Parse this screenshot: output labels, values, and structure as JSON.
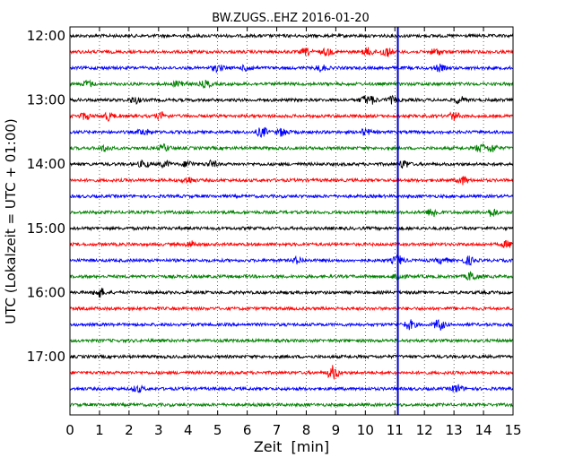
{
  "chart_data": {
    "type": "line",
    "title": "BW.ZUGS..EHZ 2016-01-20",
    "xlabel": "Zeit  [min]",
    "ylabel": "UTC (Lokalzeit = UTC + 01:00)",
    "xlim": [
      0,
      15
    ],
    "x_ticks": [
      "0",
      "1",
      "2",
      "3",
      "4",
      "5",
      "6",
      "7",
      "8",
      "9",
      "10",
      "11",
      "12",
      "13",
      "14",
      "15"
    ],
    "y_tick_labels": [
      {
        "label": "12:00",
        "trace": 0
      },
      {
        "label": "13:00",
        "trace": 4
      },
      {
        "label": "14:00",
        "trace": 8
      },
      {
        "label": "15:00",
        "trace": 12
      },
      {
        "label": "16:00",
        "trace": 16
      },
      {
        "label": "17:00",
        "trace": 20
      }
    ],
    "grid": "vertical dotted at each minute",
    "colors": [
      "#000000",
      "#ff0000",
      "#0000ff",
      "#008000"
    ],
    "marker_line": {
      "x": 11.1,
      "color": "#0000cc"
    },
    "series": [
      {
        "start": "12:00",
        "color": "#000000",
        "events": []
      },
      {
        "start": "12:15",
        "color": "#ff0000",
        "events": [
          [
            8,
            2
          ],
          [
            8.7,
            2
          ],
          [
            10.1,
            2.5
          ],
          [
            10.7,
            3
          ],
          [
            12.4,
            2
          ]
        ]
      },
      {
        "start": "12:30",
        "color": "#0000ff",
        "events": [
          [
            5,
            2
          ],
          [
            6,
            2
          ],
          [
            8.5,
            2
          ],
          [
            12.5,
            2
          ]
        ]
      },
      {
        "start": "12:45",
        "color": "#008000",
        "events": [
          [
            0.6,
            2
          ],
          [
            3.7,
            2.5
          ],
          [
            4.6,
            2
          ]
        ]
      },
      {
        "start": "13:00",
        "color": "#000000",
        "events": [
          [
            2.2,
            2
          ],
          [
            10,
            2.5
          ],
          [
            10.2,
            2.5
          ],
          [
            10.9,
            2
          ],
          [
            13.2,
            2
          ]
        ]
      },
      {
        "start": "13:15",
        "color": "#ff0000",
        "events": [
          [
            0.5,
            2
          ],
          [
            1.3,
            2.5
          ],
          [
            3.1,
            2
          ],
          [
            13,
            2.5
          ]
        ]
      },
      {
        "start": "13:30",
        "color": "#0000ff",
        "events": [
          [
            2.5,
            2
          ],
          [
            6.5,
            3
          ],
          [
            7.2,
            2.5
          ],
          [
            10,
            2
          ]
        ]
      },
      {
        "start": "13:45",
        "color": "#008000",
        "events": [
          [
            1.2,
            2
          ],
          [
            3.2,
            2
          ],
          [
            13.9,
            2.5
          ],
          [
            14.3,
            2.5
          ]
        ]
      },
      {
        "start": "14:00",
        "color": "#000000",
        "events": [
          [
            2.5,
            2
          ],
          [
            3.2,
            2
          ],
          [
            4,
            2
          ],
          [
            4.8,
            2
          ],
          [
            11.3,
            2.5
          ]
        ]
      },
      {
        "start": "14:15",
        "color": "#ff0000",
        "events": [
          [
            4,
            2
          ],
          [
            13.3,
            2.5
          ]
        ]
      },
      {
        "start": "14:30",
        "color": "#0000ff",
        "events": []
      },
      {
        "start": "14:45",
        "color": "#008000",
        "events": [
          [
            12.3,
            3
          ],
          [
            14.3,
            2.5
          ]
        ]
      },
      {
        "start": "15:00",
        "color": "#000000",
        "events": []
      },
      {
        "start": "15:15",
        "color": "#ff0000",
        "events": [
          [
            4.1,
            2
          ],
          [
            14.8,
            2
          ]
        ]
      },
      {
        "start": "15:30",
        "color": "#0000ff",
        "events": [
          [
            7.7,
            2
          ],
          [
            11.1,
            3
          ],
          [
            12.6,
            2
          ],
          [
            13.5,
            2.5
          ]
        ]
      },
      {
        "start": "15:45",
        "color": "#008000",
        "events": [
          [
            11.1,
            2.5
          ],
          [
            13.6,
            3
          ]
        ]
      },
      {
        "start": "16:00",
        "color": "#000000",
        "events": [
          [
            1,
            3
          ]
        ]
      },
      {
        "start": "16:15",
        "color": "#ff0000",
        "events": []
      },
      {
        "start": "16:30",
        "color": "#0000ff",
        "events": [
          [
            11.5,
            3
          ],
          [
            12.5,
            3.5
          ]
        ]
      },
      {
        "start": "16:45",
        "color": "#008000",
        "events": []
      },
      {
        "start": "17:00",
        "color": "#000000",
        "events": []
      },
      {
        "start": "17:15",
        "color": "#ff0000",
        "events": [
          [
            8.9,
            4.5
          ]
        ]
      },
      {
        "start": "17:30",
        "color": "#0000ff",
        "events": [
          [
            2.3,
            2
          ],
          [
            13.1,
            2.5
          ]
        ]
      },
      {
        "start": "17:45",
        "color": "#008000",
        "events": []
      }
    ]
  }
}
